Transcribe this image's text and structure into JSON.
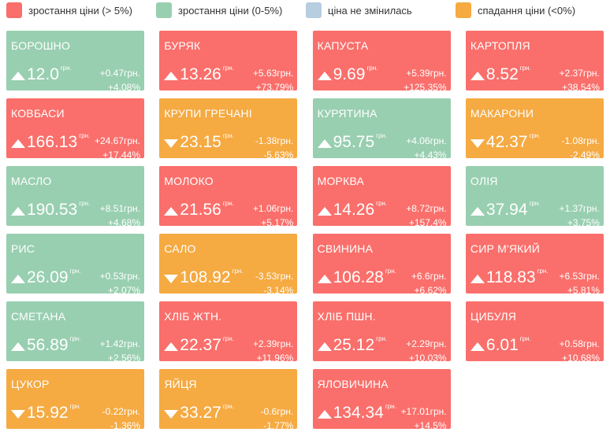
{
  "legend": [
    {
      "label": "зростання ціни (> 5%)",
      "color": "#fa6f6b"
    },
    {
      "label": "зростання ціни (0-5%)",
      "color": "#98cfb0"
    },
    {
      "label": "ціна не змінилась",
      "color": "#b7cde0"
    },
    {
      "label": "спадання ціни (<0%)",
      "color": "#f5aa42"
    }
  ],
  "tiles": [
    {
      "name": "БОРОШНО",
      "price": "12.0",
      "unit": "грн.",
      "change": "+0.47грн.",
      "percent": "+4.08%",
      "legend": 1,
      "arrow": "up"
    },
    {
      "name": "БУРЯК",
      "price": "13.26",
      "unit": "грн.",
      "change": "+5.63грн.",
      "percent": "+73.79%",
      "legend": 0,
      "arrow": "up"
    },
    {
      "name": "КАПУСТА",
      "price": "9.69",
      "unit": "грн.",
      "change": "+5.39грн.",
      "percent": "+125.35%",
      "legend": 0,
      "arrow": "up"
    },
    {
      "name": "КАРТОПЛЯ",
      "price": "8.52",
      "unit": "грн.",
      "change": "+2.37грн.",
      "percent": "+38.54%",
      "legend": 0,
      "arrow": "up"
    },
    {
      "name": "КОВБАСИ",
      "price": "166.13",
      "unit": "грн.",
      "change": "+24.67грн.",
      "percent": "+17.44%",
      "legend": 0,
      "arrow": "up"
    },
    {
      "name": "КРУПИ ГРЕЧАНІ",
      "price": "23.15",
      "unit": "грн.",
      "change": "-1.38грн.",
      "percent": "-5.63%",
      "legend": 3,
      "arrow": "down"
    },
    {
      "name": "КУРЯТИНА",
      "price": "95.75",
      "unit": "грн.",
      "change": "+4.06грн.",
      "percent": "+4.43%",
      "legend": 1,
      "arrow": "up"
    },
    {
      "name": "МАКАРОНИ",
      "price": "42.37",
      "unit": "грн.",
      "change": "-1.08грн.",
      "percent": "-2.49%",
      "legend": 3,
      "arrow": "down"
    },
    {
      "name": "МАСЛО",
      "price": "190.53",
      "unit": "грн.",
      "change": "+8.51грн.",
      "percent": "+4.68%",
      "legend": 1,
      "arrow": "up"
    },
    {
      "name": "МОЛОКО",
      "price": "21.56",
      "unit": "грн.",
      "change": "+1.06грн.",
      "percent": "+5.17%",
      "legend": 0,
      "arrow": "up"
    },
    {
      "name": "МОРКВА",
      "price": "14.26",
      "unit": "грн.",
      "change": "+8.72грн.",
      "percent": "+157.4%",
      "legend": 0,
      "arrow": "up"
    },
    {
      "name": "ОЛІЯ",
      "price": "37.94",
      "unit": "грн.",
      "change": "+1.37грн.",
      "percent": "+3.75%",
      "legend": 1,
      "arrow": "up"
    },
    {
      "name": "РИС",
      "price": "26.09",
      "unit": "грн.",
      "change": "+0.53грн.",
      "percent": "+2.07%",
      "legend": 1,
      "arrow": "up"
    },
    {
      "name": "САЛО",
      "price": "108.92",
      "unit": "грн.",
      "change": "-3.53грн.",
      "percent": "-3.14%",
      "legend": 3,
      "arrow": "down"
    },
    {
      "name": "СВИНИНА",
      "price": "106.28",
      "unit": "грн.",
      "change": "+6.6грн.",
      "percent": "+6.62%",
      "legend": 0,
      "arrow": "up"
    },
    {
      "name": "СИР М'ЯКИЙ",
      "price": "118.83",
      "unit": "грн.",
      "change": "+6.53грн.",
      "percent": "+5.81%",
      "legend": 0,
      "arrow": "up"
    },
    {
      "name": "СМЕТАНА",
      "price": "56.89",
      "unit": "грн.",
      "change": "+1.42грн.",
      "percent": "+2.56%",
      "legend": 1,
      "arrow": "up"
    },
    {
      "name": "ХЛІБ ЖТН.",
      "price": "22.37",
      "unit": "грн.",
      "change": "+2.39грн.",
      "percent": "+11.96%",
      "legend": 0,
      "arrow": "up"
    },
    {
      "name": "ХЛІБ ПШН.",
      "price": "25.12",
      "unit": "грн.",
      "change": "+2.29грн.",
      "percent": "+10.03%",
      "legend": 0,
      "arrow": "up"
    },
    {
      "name": "ЦИБУЛЯ",
      "price": "6.01",
      "unit": "грн.",
      "change": "+0.58грн.",
      "percent": "+10.68%",
      "legend": 0,
      "arrow": "up"
    },
    {
      "name": "ЦУКОР",
      "price": "15.92",
      "unit": "грн.",
      "change": "-0.22грн.",
      "percent": "-1.36%",
      "legend": 3,
      "arrow": "down"
    },
    {
      "name": "ЯЙЦЯ",
      "price": "33.27",
      "unit": "грн.",
      "change": "-0.6грн.",
      "percent": "-1.77%",
      "legend": 3,
      "arrow": "down"
    },
    {
      "name": "ЯЛОВИЧИНА",
      "price": "134.34",
      "unit": "грн.",
      "change": "+17.01грн.",
      "percent": "+14.5%",
      "legend": 0,
      "arrow": "up"
    }
  ]
}
